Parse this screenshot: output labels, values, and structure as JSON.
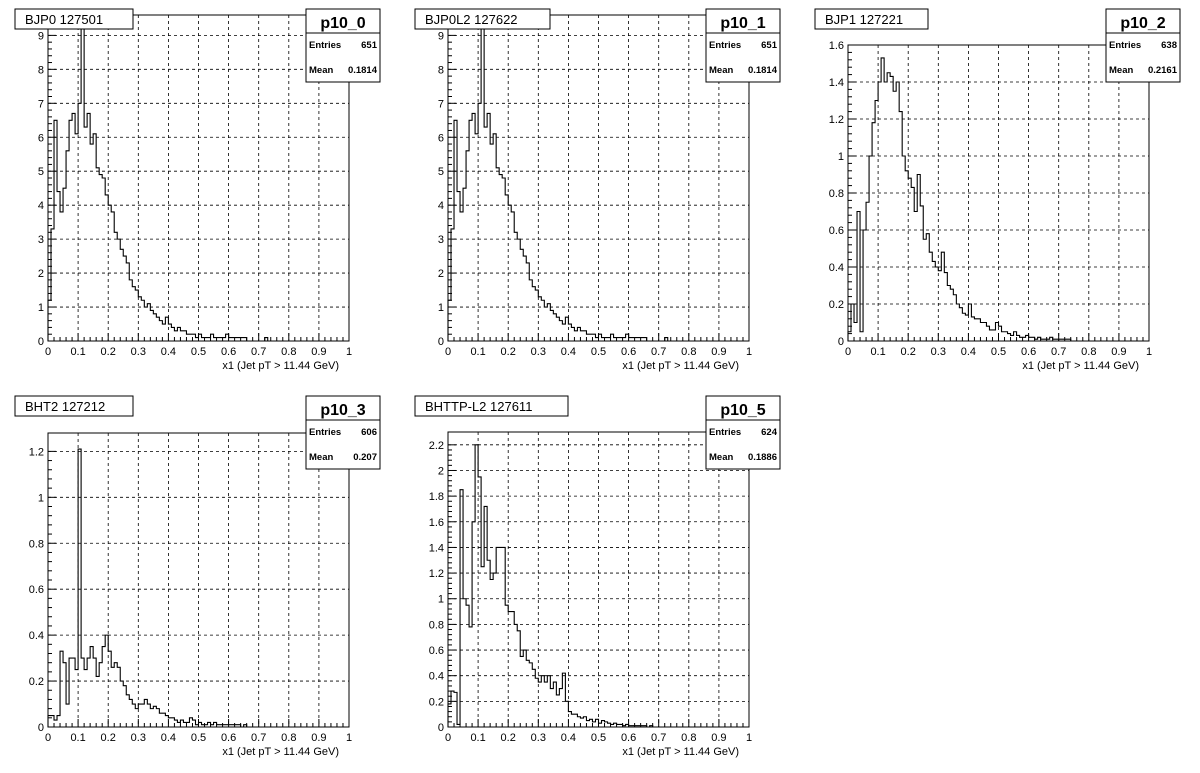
{
  "chart_data": [
    {
      "type": "histogram",
      "title": "BJP0 127501",
      "stats_name": "p10_0",
      "entries_label": "Entries",
      "entries": "651",
      "mean_label": "Mean",
      "mean": "0.1814",
      "xlabel": "x1  (Jet pT > 11.44 GeV)",
      "xlim": [
        0,
        1
      ],
      "ylim": [
        0,
        9.6
      ],
      "xticks": [
        "0",
        "0.1",
        "0.2",
        "0.3",
        "0.4",
        "0.5",
        "0.6",
        "0.7",
        "0.8",
        "0.9",
        "1"
      ],
      "yticks": [
        0,
        1,
        2,
        3,
        4,
        5,
        6,
        7,
        8,
        9
      ],
      "ytick_labels": [
        "0",
        "1",
        "2",
        "3",
        "4",
        "5",
        "6",
        "7",
        "8",
        "9"
      ],
      "grid": true,
      "bin_width": 0.01,
      "values": [
        1.2,
        3.3,
        6.5,
        4.4,
        3.8,
        4.5,
        5.6,
        6.5,
        6.7,
        6.1,
        7.0,
        9.2,
        6.3,
        6.7,
        5.8,
        6.1,
        5.1,
        4.9,
        4.8,
        4.3,
        4.0,
        3.8,
        3.2,
        3.0,
        2.7,
        2.5,
        2.3,
        1.8,
        1.6,
        1.5,
        1.3,
        1.2,
        1.0,
        1.1,
        0.9,
        0.8,
        0.7,
        0.6,
        0.5,
        0.7,
        0.5,
        0.4,
        0.3,
        0.4,
        0.3,
        0.3,
        0.2,
        0.2,
        0.2,
        0.1,
        0.2,
        0.1,
        0.1,
        0.1,
        0.2,
        0.1,
        0.1,
        0.1,
        0.1,
        0.2,
        0.1,
        0.1,
        0.1,
        0.1,
        0.1,
        0.1,
        0.0,
        0.0,
        0.0,
        0.0,
        0.0,
        0.0,
        0.1,
        0.0,
        0.0,
        0.0,
        0.0,
        0.0,
        0.0,
        0.0,
        0.0,
        0.0,
        0.0,
        0.0,
        0.0,
        0.0,
        0.0,
        0.0,
        0.0,
        0.0,
        0.0,
        0.0,
        0.0,
        0.0,
        0.0,
        0.0,
        0.0,
        0.0,
        0.0,
        0.0
      ]
    },
    {
      "type": "histogram",
      "title": "BJP0L2 127622",
      "stats_name": "p10_1",
      "entries_label": "Entries",
      "entries": "651",
      "mean_label": "Mean",
      "mean": "0.1814",
      "xlabel": "x1  (Jet pT > 11.44 GeV)",
      "xlim": [
        0,
        1
      ],
      "ylim": [
        0,
        9.6
      ],
      "xticks": [
        "0",
        "0.1",
        "0.2",
        "0.3",
        "0.4",
        "0.5",
        "0.6",
        "0.7",
        "0.8",
        "0.9",
        "1"
      ],
      "yticks": [
        0,
        1,
        2,
        3,
        4,
        5,
        6,
        7,
        8,
        9
      ],
      "ytick_labels": [
        "0",
        "1",
        "2",
        "3",
        "4",
        "5",
        "6",
        "7",
        "8",
        "9"
      ],
      "grid": true,
      "bin_width": 0.01,
      "values": [
        1.2,
        3.3,
        6.5,
        4.4,
        3.8,
        4.5,
        5.6,
        6.5,
        6.7,
        6.1,
        7.0,
        9.2,
        6.3,
        6.7,
        5.8,
        6.1,
        5.1,
        4.9,
        4.8,
        4.3,
        4.0,
        3.8,
        3.2,
        3.0,
        2.7,
        2.5,
        2.3,
        1.8,
        1.6,
        1.5,
        1.3,
        1.2,
        1.0,
        1.1,
        0.9,
        0.8,
        0.7,
        0.6,
        0.5,
        0.7,
        0.5,
        0.4,
        0.3,
        0.4,
        0.3,
        0.3,
        0.2,
        0.2,
        0.2,
        0.1,
        0.2,
        0.1,
        0.1,
        0.1,
        0.2,
        0.1,
        0.1,
        0.1,
        0.1,
        0.2,
        0.1,
        0.1,
        0.1,
        0.1,
        0.1,
        0.1,
        0.0,
        0.0,
        0.0,
        0.0,
        0.0,
        0.0,
        0.1,
        0.0,
        0.0,
        0.0,
        0.0,
        0.0,
        0.0,
        0.0,
        0.0,
        0.0,
        0.0,
        0.0,
        0.0,
        0.0,
        0.0,
        0.0,
        0.0,
        0.0,
        0.0,
        0.0,
        0.0,
        0.0,
        0.0,
        0.0,
        0.0,
        0.0,
        0.0,
        0.0
      ]
    },
    {
      "type": "histogram",
      "title": "BJP1 127221",
      "stats_name": "p10_2",
      "entries_label": "Entries",
      "entries": "638",
      "mean_label": "Mean",
      "mean": "0.2161",
      "xlabel": "x1  (Jet pT > 11.44 GeV)",
      "xlim": [
        0,
        1
      ],
      "ylim": [
        0,
        1.6
      ],
      "xticks": [
        "0",
        "0.1",
        "0.2",
        "0.3",
        "0.4",
        "0.5",
        "0.6",
        "0.7",
        "0.8",
        "0.9",
        "1"
      ],
      "yticks": [
        0,
        0.2,
        0.4,
        0.6,
        0.8,
        1.0,
        1.2,
        1.4,
        1.6
      ],
      "ytick_labels": [
        "0",
        "0.2",
        "0.4",
        "0.6",
        "0.8",
        "1",
        "1.2",
        "1.4",
        "1.6"
      ],
      "grid": true,
      "bin_width": 0.01,
      "values": [
        0.05,
        0.2,
        0.1,
        0.7,
        0.05,
        0.6,
        0.75,
        1.0,
        1.18,
        1.3,
        1.4,
        1.53,
        1.4,
        1.45,
        1.43,
        1.35,
        1.4,
        1.24,
        1.0,
        0.92,
        0.88,
        0.83,
        0.7,
        0.9,
        0.73,
        0.55,
        0.58,
        0.48,
        0.43,
        0.4,
        0.38,
        0.48,
        0.37,
        0.3,
        0.28,
        0.25,
        0.2,
        0.18,
        0.15,
        0.14,
        0.2,
        0.13,
        0.12,
        0.12,
        0.1,
        0.1,
        0.08,
        0.06,
        0.06,
        0.1,
        0.08,
        0.05,
        0.05,
        0.04,
        0.03,
        0.05,
        0.03,
        0.02,
        0.02,
        0.03,
        0.02,
        0.02,
        0.01,
        0.02,
        0.01,
        0.01,
        0.01,
        0.02,
        0.01,
        0.01,
        0.01,
        0.01,
        0.01,
        0.01,
        0.0,
        0.0,
        0.0,
        0.0,
        0.0,
        0.0,
        0.0,
        0.0,
        0.0,
        0.0,
        0.0,
        0.0,
        0.0,
        0.0,
        0.0,
        0.0,
        0.0,
        0.0,
        0.0,
        0.0,
        0.0,
        0.0,
        0.0,
        0.0,
        0.0,
        0.0
      ]
    },
    {
      "type": "histogram",
      "title": "BHT2 127212",
      "stats_name": "p10_3",
      "entries_label": "Entries",
      "entries": "606",
      "mean_label": "Mean",
      "mean": "0.207",
      "xlabel": "x1  (Jet pT > 11.44 GeV)",
      "xlim": [
        0,
        1
      ],
      "ylim": [
        0,
        1.28
      ],
      "xticks": [
        "0",
        "0.1",
        "0.2",
        "0.3",
        "0.4",
        "0.5",
        "0.6",
        "0.7",
        "0.8",
        "0.9",
        "1"
      ],
      "yticks": [
        0,
        0.2,
        0.4,
        0.6,
        0.8,
        1.0,
        1.2
      ],
      "ytick_labels": [
        "0",
        "0.2",
        "0.4",
        "0.6",
        "0.8",
        "1",
        "1.2"
      ],
      "grid": true,
      "bin_width": 0.01,
      "values": [
        0.05,
        0.05,
        0.03,
        0.05,
        0.33,
        0.28,
        0.1,
        0.3,
        0.3,
        0.25,
        1.21,
        0.3,
        0.25,
        0.3,
        0.35,
        0.3,
        0.22,
        0.28,
        0.35,
        0.4,
        0.33,
        0.26,
        0.28,
        0.26,
        0.2,
        0.18,
        0.14,
        0.12,
        0.1,
        0.08,
        0.1,
        0.1,
        0.12,
        0.1,
        0.08,
        0.09,
        0.08,
        0.06,
        0.06,
        0.05,
        0.04,
        0.04,
        0.03,
        0.02,
        0.03,
        0.02,
        0.02,
        0.04,
        0.03,
        0.01,
        0.02,
        0.01,
        0.01,
        0.02,
        0.01,
        0.02,
        0.01,
        0.01,
        0.01,
        0.01,
        0.01,
        0.01,
        0.01,
        0.01,
        0.0,
        0.01,
        0.0,
        0.0,
        0.0,
        0.0,
        0.0,
        0.0,
        0.0,
        0.0,
        0.0,
        0.0,
        0.0,
        0.0,
        0.0,
        0.0,
        0.0,
        0.0,
        0.0,
        0.0,
        0.0,
        0.0,
        0.0,
        0.0,
        0.0,
        0.0,
        0.0,
        0.0,
        0.0,
        0.0,
        0.0,
        0.0,
        0.0,
        0.0,
        0.0,
        0.0
      ]
    },
    {
      "type": "histogram",
      "title": "BHTTP-L2 127611",
      "stats_name": "p10_5",
      "entries_label": "Entries",
      "entries": "624",
      "mean_label": "Mean",
      "mean": "0.1886",
      "xlabel": "x1  (Jet pT > 11.44 GeV)",
      "xlim": [
        0,
        1
      ],
      "ylim": [
        0,
        2.3
      ],
      "xticks": [
        "0",
        "0.1",
        "0.2",
        "0.3",
        "0.4",
        "0.5",
        "0.6",
        "0.7",
        "0.8",
        "0.9",
        "1"
      ],
      "yticks": [
        0,
        0.2,
        0.4,
        0.6,
        0.8,
        1.0,
        1.2,
        1.4,
        1.6,
        1.8,
        2.0,
        2.2
      ],
      "ytick_labels": [
        "0",
        "0.2",
        "0.4",
        "0.6",
        "0.8",
        "1",
        "1.2",
        "1.4",
        "1.6",
        "1.8",
        "2",
        "2.2"
      ],
      "grid": true,
      "bin_width": 0.01,
      "values": [
        0.18,
        0.28,
        0.27,
        0.02,
        1.85,
        1.0,
        0.95,
        0.78,
        1.6,
        2.2,
        1.95,
        1.25,
        1.72,
        1.3,
        1.15,
        1.2,
        1.4,
        1.4,
        1.4,
        0.95,
        0.9,
        0.9,
        0.8,
        0.75,
        0.55,
        0.6,
        0.52,
        0.5,
        0.45,
        0.38,
        0.35,
        0.4,
        0.35,
        0.4,
        0.3,
        0.35,
        0.25,
        0.3,
        0.42,
        0.2,
        0.12,
        0.1,
        0.1,
        0.08,
        0.07,
        0.08,
        0.05,
        0.06,
        0.04,
        0.06,
        0.03,
        0.05,
        0.04,
        0.03,
        0.02,
        0.03,
        0.02,
        0.02,
        0.01,
        0.02,
        0.01,
        0.01,
        0.01,
        0.01,
        0.01,
        0.01,
        0.0,
        0.01,
        0.0,
        0.0,
        0.0,
        0.0,
        0.0,
        0.0,
        0.0,
        0.0,
        0.0,
        0.0,
        0.0,
        0.0,
        0.0,
        0.0,
        0.0,
        0.0,
        0.0,
        0.0,
        0.0,
        0.0,
        0.0,
        0.0,
        0.0,
        0.0,
        0.0,
        0.0,
        0.0,
        0.0,
        0.0,
        0.0,
        0.0,
        0.0
      ]
    }
  ]
}
